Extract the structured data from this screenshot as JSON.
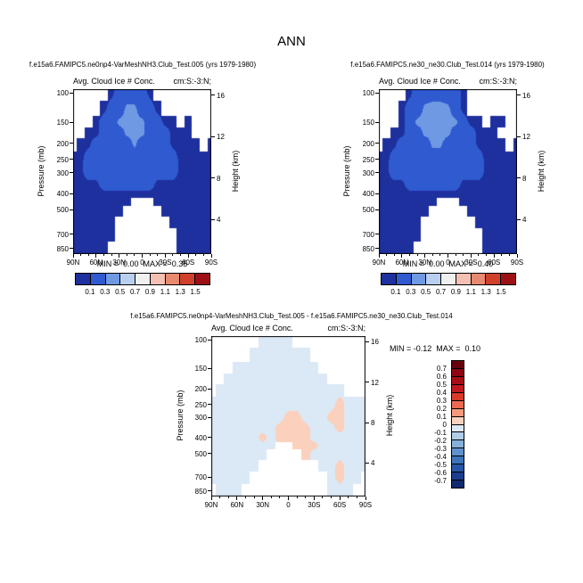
{
  "page_title": "ANN",
  "panels": [
    {
      "title": "f.e15a6.FAMIPC5.ne0np4-VarMeshNH3.Club_Test.005 (yrs 1979-1980)",
      "field_label": "Avg. Cloud Ice # Conc.",
      "units_label": "cm:S:-3:N;",
      "stats": "MIN =  0.00  MAX =  0.35"
    },
    {
      "title": "f.e15a6.FAMIPC5.ne30_ne30.Club_Test.014 (yrs 1979-1980)",
      "field_label": "Avg. Cloud Ice # Conc.",
      "units_label": "cm:S:-3:N;",
      "stats": "MIN =  0.00  MAX =  0.40"
    },
    {
      "title": "f.e15a6.FAMIPC5.ne0np4-VarMeshNH3.Club_Test.005 - f.e15a6.FAMIPC5.ne30_ne30.Club_Test.014",
      "field_label": "Avg. Cloud Ice # Conc.",
      "units_label": "cm:S:-3:N;",
      "stats": "MIN = -0.12  MAX =  0.10"
    }
  ],
  "chart_data": [
    {
      "type": "heatmap",
      "title": "f.e15a6.FAMIPC5.ne0np4-VarMeshNH3.Club_Test.005 (yrs 1979-1980)",
      "xlabel": "",
      "ylabel_left": "Pressure (mb)",
      "ylabel_right": "Height (km)",
      "x_ticks": [
        "90N",
        "60N",
        "30N",
        "0",
        "30S",
        "60S",
        "90S"
      ],
      "y_ticks_pressure": [
        100,
        150,
        200,
        250,
        300,
        400,
        500,
        700,
        850
      ],
      "y_ticks_height": [
        16,
        12,
        8,
        4
      ],
      "min": 0.0,
      "max": 0.35,
      "missing_value": 0,
      "lats": [
        90,
        80,
        70,
        60,
        50,
        40,
        30,
        20,
        10,
        0,
        -10,
        -20,
        -30,
        -40,
        -50,
        -60,
        -70,
        -80,
        -90
      ],
      "pressure_levels": [
        100,
        125,
        150,
        175,
        200,
        250,
        300,
        350,
        400,
        450,
        500,
        600,
        700,
        850
      ],
      "values": [
        [
          0,
          0,
          0,
          0,
          0,
          0.05,
          0.2,
          0.2,
          0.2,
          0.2,
          0.05,
          0,
          0,
          0,
          0,
          0,
          0,
          0,
          0
        ],
        [
          0,
          0,
          0,
          0,
          0.05,
          0.2,
          0.2,
          0.34,
          0.34,
          0.2,
          0.2,
          0.05,
          0,
          0,
          0,
          0,
          0,
          0,
          0
        ],
        [
          0,
          0,
          0,
          0.05,
          0.2,
          0.2,
          0.34,
          0.34,
          0.34,
          0.34,
          0.2,
          0.2,
          0.05,
          0.05,
          0,
          0.05,
          0,
          0,
          0
        ],
        [
          0,
          0,
          0.05,
          0.05,
          0.2,
          0.2,
          0.2,
          0.34,
          0.34,
          0.34,
          0.2,
          0.2,
          0.2,
          0.05,
          0.05,
          0.05,
          0,
          0,
          0
        ],
        [
          0,
          0.05,
          0.05,
          0.2,
          0.2,
          0.2,
          0.2,
          0.2,
          0.34,
          0.2,
          0.2,
          0.2,
          0.2,
          0.05,
          0.05,
          0.05,
          0.05,
          0,
          0.05
        ],
        [
          0.05,
          0.05,
          0.2,
          0.2,
          0.2,
          0.2,
          0.2,
          0.2,
          0.2,
          0.2,
          0.2,
          0.2,
          0.2,
          0.2,
          0.05,
          0.05,
          0.05,
          0.05,
          0.05
        ],
        [
          0.05,
          0.05,
          0.2,
          0.2,
          0.2,
          0.2,
          0.2,
          0.2,
          0.2,
          0.2,
          0.2,
          0.2,
          0.2,
          0.2,
          0.05,
          0.05,
          0.05,
          0.05,
          0.05
        ],
        [
          0.05,
          0.05,
          0.05,
          0.05,
          0.2,
          0.2,
          0.2,
          0.2,
          0.2,
          0.2,
          0.2,
          0.05,
          0.05,
          0.05,
          0.05,
          0.05,
          0.05,
          0.05,
          0.05
        ],
        [
          0.05,
          0.05,
          0.05,
          0.05,
          0.05,
          0.05,
          0.05,
          0.05,
          0.05,
          0.05,
          0.05,
          0.05,
          0.05,
          0.05,
          0.05,
          0.05,
          0.05,
          0.05,
          0.05
        ],
        [
          0.05,
          0.05,
          0.05,
          0.05,
          0.05,
          0.05,
          0.05,
          0.05,
          0,
          0,
          0,
          0.05,
          0.05,
          0.05,
          0.05,
          0.05,
          0.05,
          0.05,
          0.05
        ],
        [
          0.05,
          0.05,
          0.05,
          0.05,
          0.05,
          0.05,
          0.05,
          0,
          0,
          0,
          0,
          0,
          0.05,
          0.05,
          0.05,
          0.05,
          0.05,
          0.05,
          0.05
        ],
        [
          0.05,
          0.05,
          0.05,
          0.05,
          0.05,
          0.05,
          0,
          0,
          0,
          0,
          0,
          0,
          0,
          0.05,
          0.05,
          0.05,
          0.05,
          0.05,
          0.05
        ],
        [
          0.05,
          0.05,
          0.05,
          0.05,
          0.05,
          0.05,
          0,
          0,
          0,
          0,
          0,
          0,
          0,
          0,
          0.05,
          0.05,
          0.05,
          0.05,
          0.05
        ],
        [
          0.05,
          0.05,
          0.05,
          0.05,
          0.05,
          0,
          0,
          0,
          0,
          0,
          0,
          0,
          0,
          0,
          0.05,
          0.05,
          0.05,
          0.05,
          0.05
        ]
      ],
      "colorbar": {
        "orientation": "horizontal",
        "levels": [
          0.1,
          0.3,
          0.5,
          0.7,
          0.9,
          1.1,
          1.3,
          1.5
        ],
        "colors": [
          "#1e2f9e",
          "#2f5ad0",
          "#6f99e3",
          "#b8cff0",
          "#f0f0f0",
          "#f3c0b2",
          "#e88a6f",
          "#d0412c",
          "#9c1016"
        ]
      }
    },
    {
      "type": "heatmap",
      "title": "f.e15a6.FAMIPC5.ne30_ne30.Club_Test.014 (yrs 1979-1980)",
      "xlabel": "",
      "ylabel_left": "Pressure (mb)",
      "ylabel_right": "Height (km)",
      "x_ticks": [
        "90N",
        "60N",
        "30N",
        "0",
        "30S",
        "60S",
        "90S"
      ],
      "y_ticks_pressure": [
        100,
        150,
        200,
        250,
        300,
        400,
        500,
        700,
        850
      ],
      "y_ticks_height": [
        16,
        12,
        8,
        4
      ],
      "min": 0.0,
      "max": 0.4,
      "missing_value": 0,
      "lats": [
        90,
        80,
        70,
        60,
        50,
        40,
        30,
        20,
        10,
        0,
        -10,
        -20,
        -30,
        -40,
        -50,
        -60,
        -70,
        -80,
        -90
      ],
      "pressure_levels": [
        100,
        125,
        150,
        175,
        200,
        250,
        300,
        350,
        400,
        450,
        500,
        600,
        700,
        850
      ],
      "values": [
        [
          0,
          0,
          0,
          0,
          0.05,
          0.2,
          0.2,
          0.2,
          0.2,
          0.2,
          0.2,
          0.05,
          0,
          0,
          0,
          0,
          0,
          0,
          0
        ],
        [
          0,
          0,
          0,
          0.05,
          0.2,
          0.2,
          0.34,
          0.38,
          0.38,
          0.34,
          0.2,
          0.05,
          0,
          0,
          0,
          0,
          0,
          0,
          0
        ],
        [
          0,
          0,
          0,
          0.05,
          0.2,
          0.34,
          0.34,
          0.38,
          0.38,
          0.34,
          0.34,
          0.2,
          0.05,
          0.05,
          0,
          0.05,
          0.05,
          0,
          0
        ],
        [
          0,
          0,
          0.05,
          0.05,
          0.2,
          0.2,
          0.34,
          0.34,
          0.38,
          0.34,
          0.2,
          0.2,
          0.2,
          0.05,
          0.05,
          0.05,
          0,
          0,
          0
        ],
        [
          0,
          0.05,
          0.05,
          0.2,
          0.2,
          0.2,
          0.2,
          0.34,
          0.34,
          0.2,
          0.2,
          0.2,
          0.2,
          0.05,
          0.05,
          0.05,
          0.05,
          0,
          0.05
        ],
        [
          0.05,
          0.05,
          0.2,
          0.2,
          0.2,
          0.2,
          0.2,
          0.2,
          0.2,
          0.2,
          0.2,
          0.2,
          0.2,
          0.2,
          0.05,
          0.05,
          0.05,
          0.05,
          0.05
        ],
        [
          0.05,
          0.05,
          0.2,
          0.2,
          0.2,
          0.2,
          0.2,
          0.2,
          0.2,
          0.2,
          0.2,
          0.2,
          0.2,
          0.2,
          0.05,
          0.05,
          0.05,
          0.05,
          0.05
        ],
        [
          0.05,
          0.05,
          0.05,
          0.05,
          0.2,
          0.2,
          0.2,
          0.2,
          0.2,
          0.2,
          0.2,
          0.05,
          0.05,
          0.05,
          0.05,
          0.05,
          0.05,
          0.05,
          0.05
        ],
        [
          0.05,
          0.05,
          0.05,
          0.05,
          0.05,
          0.05,
          0.05,
          0.05,
          0.05,
          0.05,
          0.05,
          0.05,
          0.05,
          0.05,
          0.05,
          0.05,
          0.05,
          0.05,
          0.05
        ],
        [
          0.05,
          0.05,
          0.05,
          0.05,
          0.05,
          0.05,
          0.05,
          0.05,
          0,
          0,
          0,
          0.05,
          0.05,
          0.05,
          0.05,
          0.05,
          0.05,
          0.05,
          0.05
        ],
        [
          0.05,
          0.05,
          0.05,
          0.05,
          0.05,
          0.05,
          0.05,
          0,
          0,
          0,
          0,
          0,
          0.05,
          0.05,
          0.05,
          0.05,
          0.05,
          0.05,
          0.05
        ],
        [
          0.05,
          0.05,
          0.05,
          0.05,
          0.05,
          0.05,
          0,
          0,
          0,
          0,
          0,
          0,
          0,
          0.05,
          0.05,
          0.05,
          0.05,
          0.05,
          0.05
        ],
        [
          0.05,
          0.05,
          0.05,
          0.05,
          0.05,
          0.05,
          0,
          0,
          0,
          0,
          0,
          0,
          0,
          0,
          0.05,
          0.05,
          0.05,
          0.05,
          0.05
        ],
        [
          0.05,
          0.05,
          0.05,
          0.05,
          0.05,
          0,
          0,
          0,
          0,
          0,
          0,
          0,
          0,
          0,
          0.05,
          0.05,
          0.05,
          0.05,
          0.05
        ]
      ],
      "colorbar": {
        "orientation": "horizontal",
        "levels": [
          0.1,
          0.3,
          0.5,
          0.7,
          0.9,
          1.1,
          1.3,
          1.5
        ],
        "colors": [
          "#1e2f9e",
          "#2f5ad0",
          "#6f99e3",
          "#b8cff0",
          "#f0f0f0",
          "#f3c0b2",
          "#e88a6f",
          "#d0412c",
          "#9c1016"
        ]
      }
    },
    {
      "type": "heatmap",
      "title": "f.e15a6.FAMIPC5.ne0np4-VarMeshNH3.Club_Test.005 - f.e15a6.FAMIPC5.ne30_ne30.Club_Test.014",
      "xlabel": "",
      "ylabel_left": "Pressure (mb)",
      "ylabel_right": "Height (km)",
      "x_ticks": [
        "90N",
        "60N",
        "30N",
        "0",
        "30S",
        "60S",
        "90S"
      ],
      "y_ticks_pressure": [
        100,
        150,
        200,
        250,
        300,
        400,
        500,
        700,
        850
      ],
      "y_ticks_height": [
        16,
        12,
        8,
        4
      ],
      "min": -0.12,
      "max": 0.1,
      "missing_value": 0,
      "lats": [
        90,
        80,
        70,
        60,
        50,
        40,
        30,
        20,
        10,
        0,
        -10,
        -20,
        -30,
        -40,
        -50,
        -60,
        -70,
        -80,
        -90
      ],
      "pressure_levels": [
        100,
        125,
        150,
        175,
        200,
        250,
        300,
        350,
        400,
        450,
        500,
        600,
        700,
        850
      ],
      "values": [
        [
          0,
          0,
          0,
          0,
          0,
          0,
          -0.05,
          -0.05,
          -0.05,
          -0.05,
          0,
          0,
          0,
          0,
          0,
          0,
          0,
          0,
          0
        ],
        [
          0,
          0,
          0,
          0,
          0,
          -0.05,
          -0.05,
          -0.05,
          -0.05,
          -0.05,
          -0.05,
          -0.05,
          0,
          0,
          0,
          0,
          0,
          0,
          0
        ],
        [
          0,
          0,
          0,
          -0.05,
          -0.05,
          -0.05,
          -0.05,
          -0.05,
          -0.05,
          -0.05,
          -0.05,
          -0.05,
          -0.05,
          0,
          0,
          0,
          0,
          0,
          0
        ],
        [
          0,
          0,
          -0.05,
          -0.05,
          -0.05,
          -0.05,
          -0.05,
          -0.05,
          -0.05,
          -0.05,
          -0.05,
          -0.05,
          -0.05,
          -0.05,
          0,
          0,
          0,
          0,
          0
        ],
        [
          0,
          -0.05,
          -0.05,
          -0.05,
          -0.05,
          -0.05,
          -0.05,
          -0.05,
          -0.05,
          -0.05,
          -0.05,
          -0.05,
          -0.05,
          -0.05,
          -0.05,
          -0.05,
          0,
          0,
          0
        ],
        [
          -0.05,
          -0.05,
          -0.05,
          -0.05,
          -0.05,
          -0.05,
          -0.05,
          -0.05,
          -0.05,
          -0.05,
          -0.05,
          -0.05,
          -0.05,
          -0.05,
          -0.05,
          0.05,
          -0.05,
          -0.05,
          -0.05
        ],
        [
          -0.05,
          -0.05,
          -0.05,
          -0.05,
          -0.05,
          -0.05,
          -0.05,
          -0.05,
          -0.05,
          0.05,
          0.05,
          -0.05,
          -0.05,
          -0.05,
          0.05,
          0.05,
          -0.05,
          -0.05,
          -0.05
        ],
        [
          -0.05,
          -0.05,
          -0.05,
          -0.05,
          -0.05,
          -0.05,
          -0.05,
          -0.05,
          0.05,
          0.05,
          0.05,
          0.05,
          -0.05,
          -0.05,
          -0.05,
          0.05,
          -0.05,
          -0.05,
          -0.05
        ],
        [
          -0.05,
          -0.05,
          -0.05,
          -0.05,
          -0.05,
          -0.05,
          0.05,
          -0.05,
          0.05,
          0.05,
          0.05,
          0.05,
          -0.05,
          -0.05,
          -0.05,
          -0.05,
          -0.05,
          -0.05,
          -0.05
        ],
        [
          -0.05,
          -0.05,
          -0.05,
          -0.05,
          -0.05,
          -0.05,
          -0.05,
          -0.05,
          0,
          0,
          0.05,
          0.05,
          0.05,
          -0.05,
          -0.05,
          -0.05,
          -0.05,
          -0.05,
          -0.05
        ],
        [
          -0.05,
          -0.05,
          -0.05,
          -0.05,
          -0.05,
          -0.05,
          -0.05,
          0,
          0,
          0,
          0,
          0.05,
          -0.05,
          -0.05,
          -0.05,
          -0.05,
          -0.05,
          -0.05,
          -0.05
        ],
        [
          -0.05,
          -0.05,
          -0.05,
          -0.05,
          -0.05,
          -0.05,
          0,
          0,
          0,
          0,
          0,
          0,
          0,
          -0.05,
          -0.05,
          0.05,
          -0.05,
          -0.05,
          -0.05
        ],
        [
          -0.05,
          -0.05,
          -0.05,
          -0.05,
          -0.05,
          0,
          0,
          0,
          0,
          0,
          0,
          0,
          0,
          0,
          -0.05,
          0.05,
          -0.05,
          -0.05,
          0
        ],
        [
          0,
          -0.05,
          -0.05,
          -0.05,
          0,
          0,
          0,
          0,
          0,
          0,
          0,
          0,
          0,
          0,
          -0.05,
          -0.05,
          -0.05,
          0,
          0
        ]
      ],
      "colorbar": {
        "orientation": "vertical",
        "levels": [
          0.7,
          0.6,
          0.5,
          0.4,
          0.3,
          0.2,
          0.1,
          0,
          -0.1,
          -0.2,
          -0.3,
          -0.4,
          -0.5,
          -0.6,
          -0.7
        ],
        "colors": [
          "#67000d",
          "#8c0711",
          "#a50f15",
          "#c01a20",
          "#d93a2a",
          "#ea6a51",
          "#f59a7c",
          "#fbd0bc",
          "#dbe8f5",
          "#b0cde8",
          "#86b0db",
          "#5e92cc",
          "#3d74bc",
          "#2757a8",
          "#1a3d8f",
          "#102a70"
        ]
      }
    }
  ]
}
